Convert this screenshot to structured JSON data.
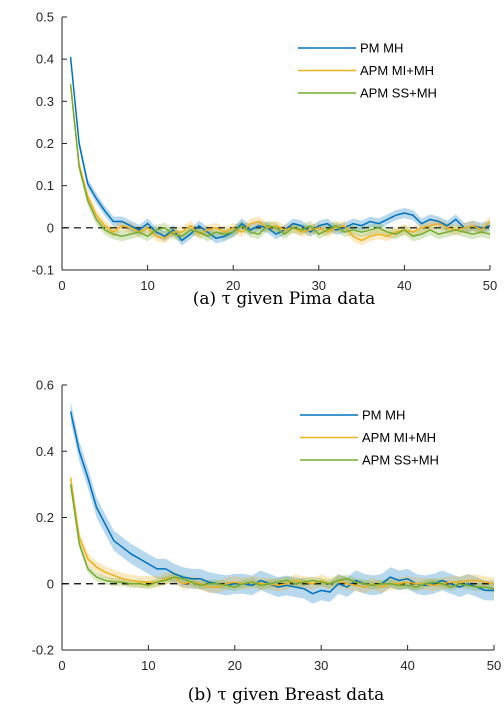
{
  "chart_data": [
    {
      "type": "line",
      "caption": "(a) τ given Pima data",
      "xlim": [
        0,
        50
      ],
      "ylim": [
        -0.1,
        0.5
      ],
      "xticks": [
        0,
        10,
        20,
        30,
        40,
        50
      ],
      "yticks": [
        -0.1,
        0,
        0.1,
        0.2,
        0.3,
        0.4,
        0.5
      ],
      "ytick_labels": [
        "-0.1",
        "0",
        "0.1",
        "0.2",
        "0.3",
        "0.4",
        "0.5"
      ],
      "xtick_labels": [
        "0",
        "10",
        "20",
        "30",
        "40",
        "50"
      ],
      "reference_line": {
        "y": 0,
        "style": "dashed",
        "color": "#000000"
      },
      "legend": {
        "position": "top-right"
      },
      "series": [
        {
          "name": "PM MH",
          "color": "#0072BD",
          "x": [
            1,
            2,
            3,
            4,
            5,
            6,
            7,
            8,
            9,
            10,
            11,
            12,
            13,
            14,
            15,
            16,
            17,
            18,
            19,
            20,
            21,
            22,
            23,
            24,
            25,
            26,
            27,
            28,
            29,
            30,
            31,
            32,
            33,
            34,
            35,
            36,
            37,
            38,
            39,
            40,
            41,
            42,
            43,
            44,
            45,
            46,
            47,
            48,
            49,
            50
          ],
          "values": [
            0.405,
            0.2,
            0.105,
            0.07,
            0.04,
            0.015,
            0.015,
            0.005,
            -0.005,
            0.01,
            -0.01,
            -0.02,
            -0.005,
            -0.03,
            -0.015,
            0.005,
            -0.01,
            -0.025,
            -0.02,
            -0.01,
            0.01,
            -0.005,
            0.005,
            0.0,
            -0.015,
            -0.005,
            0.01,
            0.005,
            -0.01,
            0.005,
            0.01,
            -0.005,
            0.0,
            0.01,
            0.005,
            0.015,
            0.01,
            0.02,
            0.03,
            0.035,
            0.03,
            0.01,
            0.02,
            0.015,
            0.005,
            0.02,
            0.0,
            0.005,
            0.0,
            0.005
          ],
          "band": 0.012
        },
        {
          "name": "APM MI+MH",
          "color": "#EDB120",
          "x": [
            1,
            2,
            3,
            4,
            5,
            6,
            7,
            8,
            9,
            10,
            11,
            12,
            13,
            14,
            15,
            16,
            17,
            18,
            19,
            20,
            21,
            22,
            23,
            24,
            25,
            26,
            27,
            28,
            29,
            30,
            31,
            32,
            33,
            34,
            35,
            36,
            37,
            38,
            39,
            40,
            41,
            42,
            43,
            44,
            45,
            46,
            47,
            48,
            49,
            50
          ],
          "values": [
            0.34,
            0.15,
            0.075,
            0.03,
            0.005,
            -0.01,
            0.005,
            0.0,
            -0.01,
            0.0,
            -0.02,
            -0.025,
            -0.01,
            -0.01,
            0.005,
            -0.015,
            -0.005,
            0.0,
            -0.01,
            0.0,
            -0.01,
            0.01,
            0.015,
            0.0,
            0.005,
            -0.005,
            0.0,
            -0.01,
            -0.005,
            0.0,
            -0.01,
            0.0,
            0.005,
            -0.02,
            -0.03,
            -0.02,
            -0.015,
            -0.02,
            -0.01,
            -0.005,
            -0.01,
            0.0,
            0.005,
            0.01,
            0.0,
            -0.005,
            0.0,
            0.005,
            -0.005,
            0.015
          ],
          "band": 0.012
        },
        {
          "name": "APM SS+MH",
          "color": "#77AC30",
          "x": [
            1,
            2,
            3,
            4,
            5,
            6,
            7,
            8,
            9,
            10,
            11,
            12,
            13,
            14,
            15,
            16,
            17,
            18,
            19,
            20,
            21,
            22,
            23,
            24,
            25,
            26,
            27,
            28,
            29,
            30,
            31,
            32,
            33,
            34,
            35,
            36,
            37,
            38,
            39,
            40,
            41,
            42,
            43,
            44,
            45,
            46,
            47,
            48,
            49,
            50
          ],
          "values": [
            0.34,
            0.145,
            0.065,
            0.02,
            -0.005,
            -0.015,
            -0.02,
            -0.015,
            -0.01,
            -0.02,
            -0.005,
            0.0,
            -0.015,
            -0.02,
            -0.005,
            -0.01,
            -0.02,
            -0.01,
            -0.015,
            -0.01,
            0.005,
            -0.01,
            -0.015,
            0.005,
            0.0,
            -0.015,
            0.0,
            -0.005,
            0.005,
            -0.015,
            -0.005,
            0.005,
            -0.01,
            -0.005,
            -0.01,
            -0.005,
            0.0,
            -0.01,
            -0.015,
            -0.005,
            -0.02,
            -0.015,
            -0.005,
            -0.015,
            -0.01,
            -0.005,
            -0.01,
            -0.015,
            -0.01,
            -0.015
          ],
          "band": 0.012
        }
      ]
    },
    {
      "type": "line",
      "caption": "(b) τ given Breast data",
      "xlim": [
        0,
        50
      ],
      "ylim": [
        -0.2,
        0.6
      ],
      "xticks": [
        0,
        10,
        20,
        30,
        40,
        50
      ],
      "yticks": [
        -0.2,
        0,
        0.2,
        0.4,
        0.6
      ],
      "ytick_labels": [
        "-0.2",
        "0",
        "0.2",
        "0.4",
        "0.6"
      ],
      "xtick_labels": [
        "0",
        "10",
        "20",
        "30",
        "40",
        "50"
      ],
      "reference_line": {
        "y": 0,
        "style": "dashed",
        "color": "#000000"
      },
      "legend": {
        "position": "top-right"
      },
      "series": [
        {
          "name": "PM MH",
          "color": "#0072BD",
          "x": [
            1,
            2,
            3,
            4,
            5,
            6,
            7,
            8,
            9,
            10,
            11,
            12,
            13,
            14,
            15,
            16,
            17,
            18,
            19,
            20,
            21,
            22,
            23,
            24,
            25,
            26,
            27,
            28,
            29,
            30,
            31,
            32,
            33,
            34,
            35,
            36,
            37,
            38,
            39,
            40,
            41,
            42,
            43,
            44,
            45,
            46,
            47,
            48,
            49,
            50
          ],
          "values": [
            0.52,
            0.4,
            0.32,
            0.23,
            0.18,
            0.13,
            0.11,
            0.09,
            0.075,
            0.06,
            0.045,
            0.045,
            0.03,
            0.02,
            0.015,
            0.015,
            0.005,
            0.0,
            -0.005,
            0.0,
            0.0,
            -0.005,
            0.01,
            0.0,
            -0.01,
            -0.005,
            -0.01,
            -0.015,
            -0.03,
            -0.02,
            -0.025,
            0.0,
            -0.01,
            0.01,
            0.0,
            -0.005,
            0.0,
            0.02,
            0.01,
            0.015,
            0.0,
            -0.005,
            0.0,
            0.01,
            0.0,
            -0.01,
            0.0,
            -0.01,
            -0.02,
            -0.02
          ],
          "band": 0.03
        },
        {
          "name": "APM MI+MH",
          "color": "#EDB120",
          "x": [
            1,
            2,
            3,
            4,
            5,
            6,
            7,
            8,
            9,
            10,
            11,
            12,
            13,
            14,
            15,
            16,
            17,
            18,
            19,
            20,
            21,
            22,
            23,
            24,
            25,
            26,
            27,
            28,
            29,
            30,
            31,
            32,
            33,
            34,
            35,
            36,
            37,
            38,
            39,
            40,
            41,
            42,
            43,
            44,
            45,
            46,
            47,
            48,
            49,
            50
          ],
          "values": [
            0.32,
            0.14,
            0.075,
            0.05,
            0.035,
            0.025,
            0.015,
            0.01,
            0.005,
            0.005,
            0.005,
            0.015,
            0.02,
            0.0,
            0.005,
            0.0,
            -0.01,
            -0.01,
            0.0,
            0.005,
            0.0,
            0.005,
            0.0,
            0.0,
            -0.005,
            0.0,
            0.01,
            0.005,
            0.0,
            0.01,
            0.0,
            0.01,
            0.0,
            -0.005,
            -0.01,
            0.0,
            -0.01,
            0.0,
            0.0,
            0.005,
            0.0,
            0.0,
            -0.005,
            0.0,
            0.005,
            0.005,
            0.01,
            0.01,
            0.005,
            0.0
          ],
          "band": 0.018
        },
        {
          "name": "APM SS+MH",
          "color": "#77AC30",
          "x": [
            1,
            2,
            3,
            4,
            5,
            6,
            7,
            8,
            9,
            10,
            11,
            12,
            13,
            14,
            15,
            16,
            17,
            18,
            19,
            20,
            21,
            22,
            23,
            24,
            25,
            26,
            27,
            28,
            29,
            30,
            31,
            32,
            33,
            34,
            35,
            36,
            37,
            38,
            39,
            40,
            41,
            42,
            43,
            44,
            45,
            46,
            47,
            48,
            49,
            50
          ],
          "values": [
            0.3,
            0.12,
            0.045,
            0.02,
            0.01,
            0.005,
            0.005,
            0.0,
            0.0,
            -0.005,
            0.005,
            0.01,
            0.02,
            0.015,
            0.005,
            -0.005,
            0.0,
            0.0,
            -0.005,
            -0.01,
            0.0,
            0.005,
            -0.005,
            0.0,
            0.005,
            0.01,
            0.0,
            0.005,
            0.01,
            0.005,
            0.0,
            0.01,
            0.015,
            0.005,
            0.0,
            -0.005,
            0.0,
            0.0,
            -0.005,
            -0.005,
            -0.01,
            0.0,
            0.005,
            0.0,
            -0.01,
            0.0,
            -0.005,
            -0.01,
            -0.01,
            -0.015
          ],
          "band": 0.012
        }
      ]
    }
  ]
}
